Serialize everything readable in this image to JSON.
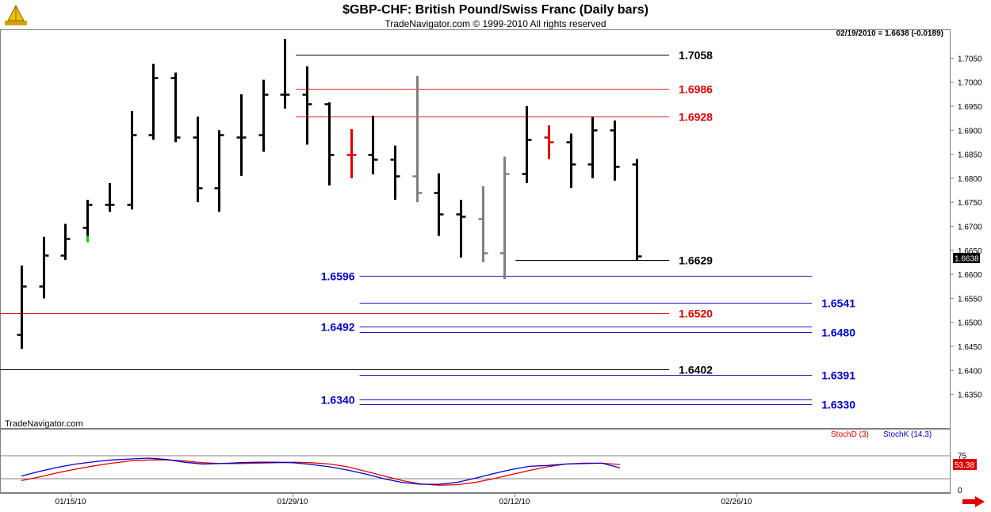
{
  "title": "$GBP-CHF:  British Pound/Swiss Franc  (Daily bars)",
  "subtitle": "TradeNavigator.com © 1999-2010 All rights reserved",
  "quote_header": "02/19/2010 = 1.6638 (-0.0189)",
  "brand": "TradeNavigator.com",
  "colors": {
    "bar": "#000000",
    "gray": "#808080",
    "red": "#dd0000",
    "blue": "#0000cc",
    "line_red": "#dd2222",
    "line_blue": "#1a1ab4",
    "line_black": "#000000"
  },
  "icons": {
    "logo": "trade-navigator-logo-icon",
    "nav": "next-page-arrow-icon"
  },
  "chart_data": {
    "type": "ohlc",
    "ylim": [
      1.628,
      1.711
    ],
    "y_ticks": [
      "1.7050",
      "1.7000",
      "1.6950",
      "1.6900",
      "1.6850",
      "1.6800",
      "1.6750",
      "1.6700",
      "1.6650",
      "1.6600",
      "1.6550",
      "1.6500",
      "1.6450",
      "1.6400",
      "1.6350"
    ],
    "x_ticks": [
      "01/15/10",
      "01/29/10",
      "02/12/10",
      "02/26/10"
    ],
    "last_price_label": "1.6638",
    "bars": [
      {
        "o": 1.6475,
        "h": 1.6618,
        "l": 1.6445,
        "c": 1.6575,
        "color": "black"
      },
      {
        "o": 1.6575,
        "h": 1.6678,
        "l": 1.655,
        "c": 1.664,
        "color": "black"
      },
      {
        "o": 1.664,
        "h": 1.6705,
        "l": 1.663,
        "c": 1.6675,
        "color": "black"
      },
      {
        "o": 1.6697,
        "h": 1.6755,
        "l": 1.668,
        "c": 1.6745,
        "color": "black",
        "low_tail_green": true
      },
      {
        "o": 1.6745,
        "h": 1.679,
        "l": 1.673,
        "c": 1.6745,
        "color": "black"
      },
      {
        "o": 1.6745,
        "h": 1.694,
        "l": 1.6735,
        "c": 1.689,
        "color": "black"
      },
      {
        "o": 1.689,
        "h": 1.7038,
        "l": 1.688,
        "c": 1.701,
        "color": "black"
      },
      {
        "o": 1.701,
        "h": 1.702,
        "l": 1.6875,
        "c": 1.6885,
        "color": "black"
      },
      {
        "o": 1.6885,
        "h": 1.6928,
        "l": 1.675,
        "c": 1.678,
        "color": "black"
      },
      {
        "o": 1.678,
        "h": 1.69,
        "l": 1.673,
        "c": 1.689,
        "color": "black"
      },
      {
        "o": 1.6885,
        "h": 1.6975,
        "l": 1.6805,
        "c": 1.6885,
        "color": "black"
      },
      {
        "o": 1.689,
        "h": 1.7005,
        "l": 1.6855,
        "c": 1.6975,
        "color": "black"
      },
      {
        "o": 1.6975,
        "h": 1.709,
        "l": 1.6945,
        "c": 1.6975,
        "color": "black"
      },
      {
        "o": 1.6975,
        "h": 1.7033,
        "l": 1.687,
        "c": 1.6955,
        "color": "black"
      },
      {
        "o": 1.6955,
        "h": 1.6958,
        "l": 1.6785,
        "c": 1.685,
        "color": "black"
      },
      {
        "o": 1.685,
        "h": 1.6902,
        "l": 1.68,
        "c": 1.685,
        "color": "red"
      },
      {
        "o": 1.685,
        "h": 1.693,
        "l": 1.6808,
        "c": 1.684,
        "color": "black"
      },
      {
        "o": 1.684,
        "h": 1.6868,
        "l": 1.6755,
        "c": 1.6805,
        "color": "black"
      },
      {
        "o": 1.6805,
        "h": 1.7013,
        "l": 1.675,
        "c": 1.677,
        "color": "gray"
      },
      {
        "o": 1.677,
        "h": 1.681,
        "l": 1.668,
        "c": 1.6725,
        "color": "black"
      },
      {
        "o": 1.6725,
        "h": 1.6755,
        "l": 1.6635,
        "c": 1.672,
        "color": "black"
      },
      {
        "o": 1.6715,
        "h": 1.6783,
        "l": 1.6625,
        "c": 1.6645,
        "color": "gray"
      },
      {
        "o": 1.6645,
        "h": 1.6845,
        "l": 1.659,
        "c": 1.681,
        "color": "gray"
      },
      {
        "o": 1.681,
        "h": 1.695,
        "l": 1.679,
        "c": 1.688,
        "color": "black"
      },
      {
        "o": 1.6885,
        "h": 1.691,
        "l": 1.684,
        "c": 1.6875,
        "color": "red"
      },
      {
        "o": 1.6875,
        "h": 1.6893,
        "l": 1.678,
        "c": 1.683,
        "color": "black"
      },
      {
        "o": 1.683,
        "h": 1.6928,
        "l": 1.68,
        "c": 1.69,
        "color": "black"
      },
      {
        "o": 1.69,
        "h": 1.692,
        "l": 1.6795,
        "c": 1.6825,
        "color": "black"
      },
      {
        "o": 1.683,
        "h": 1.684,
        "l": 1.663,
        "c": 1.6638,
        "color": "black"
      }
    ],
    "levels": [
      {
        "label": "1.7058",
        "value": 1.7058,
        "color": "line_black",
        "x0": 12.5,
        "x1": 29.5,
        "label_at": "right"
      },
      {
        "label": "1.6986",
        "value": 1.6986,
        "color": "line_red",
        "x0": 12.5,
        "x1": 29.5,
        "label_at": "right"
      },
      {
        "label": "1.6928",
        "value": 1.6928,
        "color": "line_red",
        "x0": 12.5,
        "x1": 29.5,
        "label_at": "right"
      },
      {
        "label": "1.6629",
        "value": 1.6629,
        "color": "line_black",
        "x0": 22.5,
        "x1": 29.5,
        "label_at": "right"
      },
      {
        "label": "1.6596",
        "value": 1.6596,
        "color": "line_blue",
        "x0": 15.4,
        "x1": 36.0,
        "label_at": "left"
      },
      {
        "label": "1.6541",
        "value": 1.6541,
        "color": "line_blue",
        "x0": 15.4,
        "x1": 36.0,
        "label_at": "right"
      },
      {
        "label": "1.6520",
        "value": 1.652,
        "color": "line_red",
        "x0": -1.0,
        "x1": 29.5,
        "label_at": "right"
      },
      {
        "label": "1.6492",
        "value": 1.6492,
        "color": "line_blue",
        "x0": 15.4,
        "x1": 36.0,
        "label_at": "left"
      },
      {
        "label": "1.6480",
        "value": 1.648,
        "color": "line_blue",
        "x0": 15.4,
        "x1": 36.0,
        "label_at": "right"
      },
      {
        "label": "1.6402",
        "value": 1.6402,
        "color": "line_black",
        "x0": -1.0,
        "x1": 29.5,
        "label_at": "right"
      },
      {
        "label": "1.6391",
        "value": 1.6391,
        "color": "line_blue",
        "x0": 15.4,
        "x1": 36.0,
        "label_at": "right"
      },
      {
        "label": "1.6340",
        "value": 1.634,
        "color": "line_blue",
        "x0": 15.4,
        "x1": 36.0,
        "label_at": "left"
      },
      {
        "label": "1.6330",
        "value": 1.633,
        "color": "line_blue",
        "x0": 15.4,
        "x1": 36.0,
        "label_at": "right"
      }
    ],
    "stochastic": {
      "ylim": [
        0,
        100
      ],
      "y_ticks": [
        "75",
        "0"
      ],
      "value_label": "53.38",
      "stochD_label": "StochD (3)",
      "stochK_label": "StochK (14,3)",
      "stochD": [
        20,
        28,
        37,
        45,
        52,
        58,
        63,
        65,
        65,
        63,
        59,
        57,
        57,
        58,
        59,
        60,
        59,
        56,
        50,
        40,
        30,
        20,
        13,
        10,
        11,
        16,
        24,
        33,
        42,
        50,
        56,
        58,
        58,
        55
      ],
      "stochK": [
        30,
        40,
        49,
        56,
        61,
        65,
        67,
        69,
        66,
        60,
        56,
        57,
        59,
        60,
        60,
        59,
        55,
        50,
        43,
        34,
        24,
        16,
        12,
        12,
        16,
        25,
        35,
        44,
        51,
        53,
        56,
        57,
        58,
        48
      ]
    }
  }
}
